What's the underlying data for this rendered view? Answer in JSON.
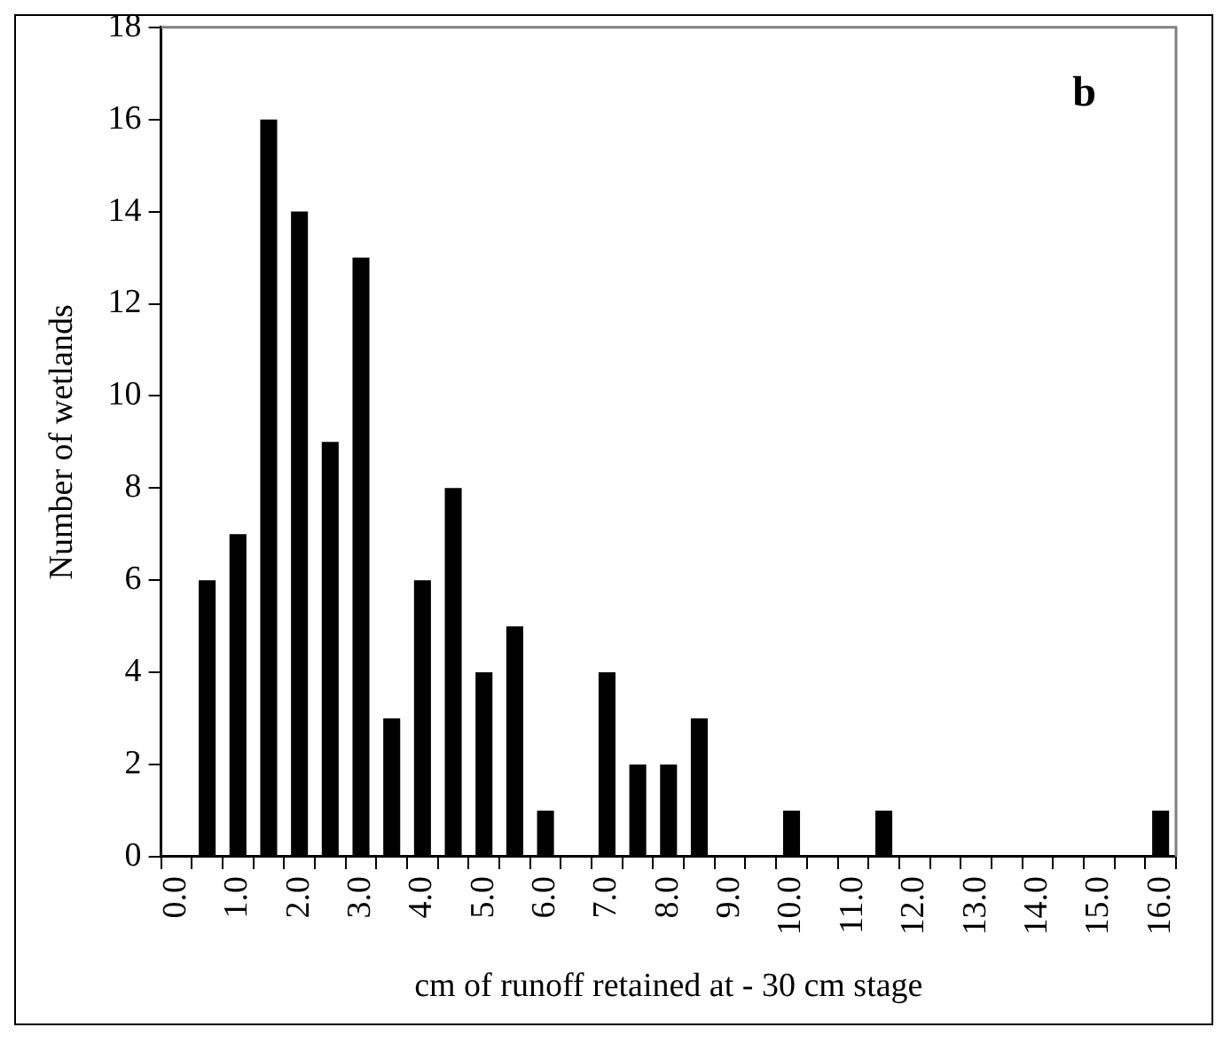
{
  "chart_data": {
    "type": "bar",
    "xlabel": "cm of runoff retained at - 30 cm stage",
    "ylabel": "Number of wetlands",
    "annotations": [
      "b"
    ],
    "categories": [
      "0.0",
      null,
      "1.0",
      null,
      "2.0",
      null,
      "3.0",
      null,
      "4.0",
      null,
      "5.0",
      null,
      "6.0",
      null,
      "7.0",
      null,
      "8.0",
      null,
      "9.0",
      null,
      "10.0",
      null,
      "11.0",
      null,
      "12.0",
      null,
      "13.0",
      null,
      "14.0",
      null,
      "15.0",
      null,
      "16.0"
    ],
    "values": [
      0,
      6,
      7,
      16,
      14,
      9,
      13,
      3,
      6,
      8,
      4,
      5,
      1,
      0,
      4,
      2,
      2,
      3,
      0,
      0,
      1,
      0,
      0,
      1,
      0,
      0,
      0,
      0,
      0,
      0,
      0,
      0,
      1
    ],
    "color": "#000000",
    "ylim": [
      0,
      18
    ],
    "yticks": [
      0,
      2,
      4,
      6,
      8,
      10,
      12,
      14,
      16,
      18
    ],
    "grid": false,
    "legend": false
  }
}
